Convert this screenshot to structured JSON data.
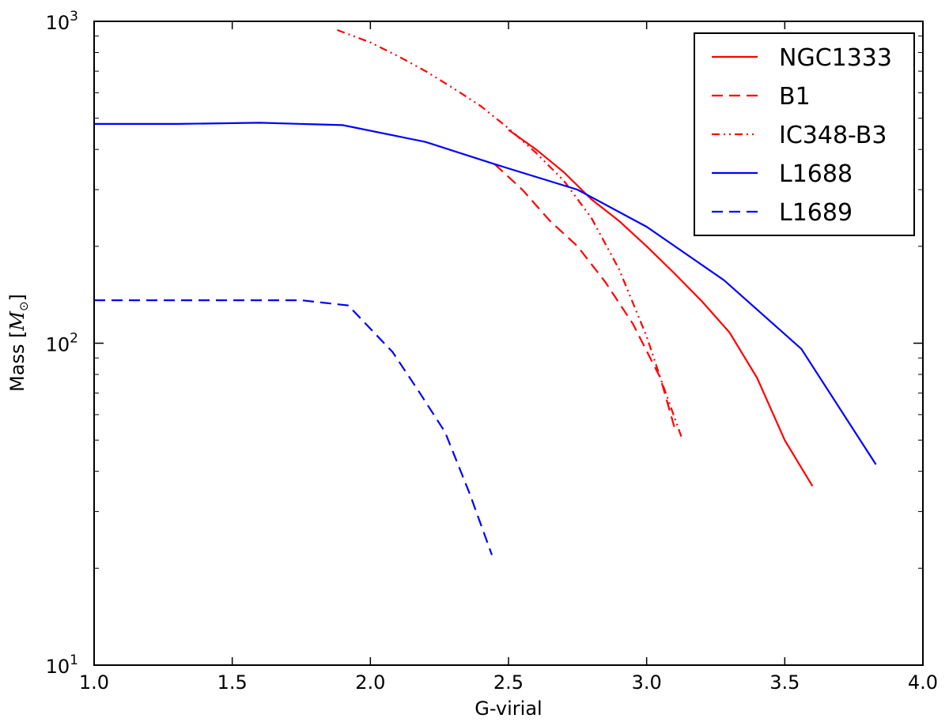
{
  "chart_data": {
    "type": "line",
    "xlabel": "G-virial",
    "ylabel": "Mass [",
    "ylabel_math": "M",
    "ylabel_sub": "⊙",
    "ylabel_end": "]",
    "xlim": [
      1.0,
      4.0
    ],
    "ylim": [
      10,
      1000
    ],
    "yscale": "log",
    "grid": false,
    "legend_position": "upper right",
    "x_ticks": [
      1.0,
      1.5,
      2.0,
      2.5,
      3.0,
      3.5,
      4.0
    ],
    "x_tick_labels": [
      "1.0",
      "1.5",
      "2.0",
      "2.5",
      "3.0",
      "3.5",
      "4.0"
    ],
    "y_ticks": [
      10,
      100,
      1000
    ],
    "y_tick_bases": [
      "10",
      "10",
      "10"
    ],
    "y_tick_exps": [
      "1",
      "2",
      "3"
    ],
    "series": [
      {
        "name": "NGC1333",
        "color": "#ff0000",
        "dash": "solid",
        "x": [
          2.5,
          2.6,
          2.7,
          2.8,
          2.9,
          3.0,
          3.1,
          3.2,
          3.3,
          3.4,
          3.5,
          3.6
        ],
        "y": [
          460,
          400,
          340,
          280,
          240,
          200,
          165,
          135,
          108,
          78,
          50,
          36
        ]
      },
      {
        "name": "B1",
        "color": "#ff0000",
        "dash": "dashed",
        "x": [
          2.45,
          2.55,
          2.65,
          2.75,
          2.85,
          2.95,
          3.05,
          3.1
        ],
        "y": [
          360,
          300,
          240,
          200,
          155,
          115,
          78,
          55
        ]
      },
      {
        "name": "IC348-B3",
        "color": "#ff0000",
        "dash": "dashdotdot",
        "x": [
          1.88,
          2.0,
          2.1,
          2.2,
          2.3,
          2.4,
          2.5,
          2.6,
          2.7,
          2.8,
          2.9,
          3.0,
          3.05,
          3.13
        ],
        "y": [
          940,
          860,
          780,
          700,
          620,
          545,
          465,
          390,
          320,
          245,
          170,
          105,
          78,
          50
        ]
      },
      {
        "name": "L1688",
        "color": "#0000ff",
        "dash": "solid",
        "x": [
          1.0,
          1.3,
          1.6,
          1.9,
          2.2,
          2.45,
          2.75,
          3.0,
          3.28,
          3.56,
          3.83
        ],
        "y": [
          480,
          480,
          484,
          476,
          422,
          360,
          300,
          230,
          157,
          96,
          42
        ]
      },
      {
        "name": "L1689",
        "color": "#0000ff",
        "dash": "dashed",
        "x": [
          1.0,
          1.5,
          1.75,
          1.92,
          2.08,
          2.17,
          2.27,
          2.36,
          2.44
        ],
        "y": [
          136,
          136,
          136,
          131,
          94,
          72,
          53,
          34,
          22
        ]
      }
    ]
  }
}
